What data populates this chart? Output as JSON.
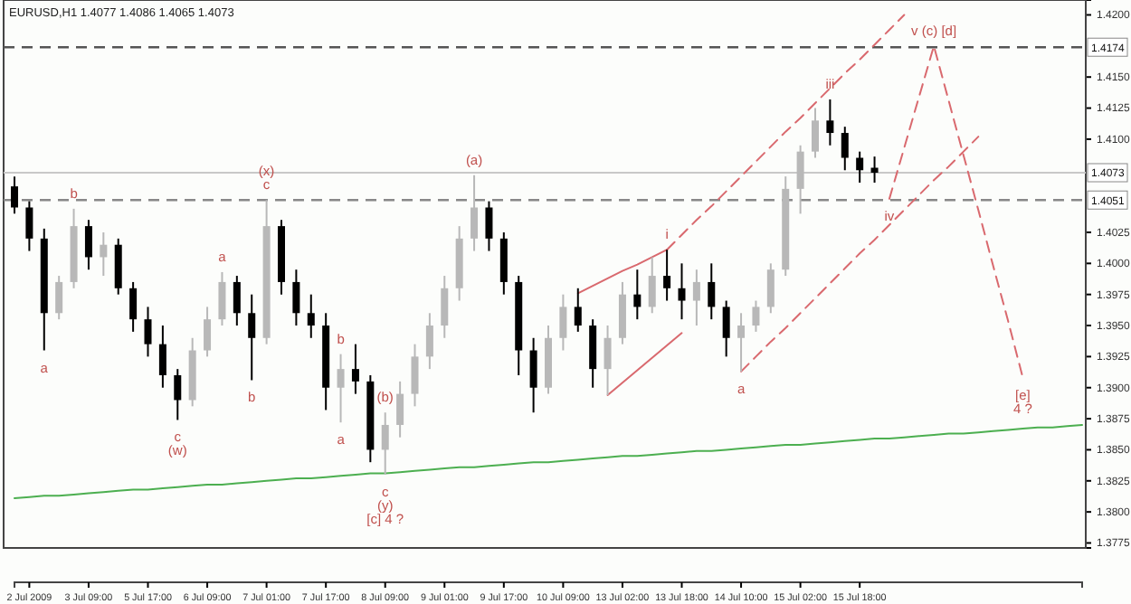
{
  "chart_data": {
    "type": "candlestick",
    "title": "EURUSD,H1  1.4077 1.4086 1.4065 1.4073",
    "categories": [
      null,
      "2 Jul 2009",
      null,
      null,
      null,
      "3 Jul 09:00",
      null,
      null,
      null,
      "5 Jul 17:00",
      null,
      null,
      null,
      "6 Jul 09:00",
      null,
      null,
      null,
      "7 Jul 01:00",
      null,
      null,
      null,
      "7 Jul 17:00",
      null,
      null,
      null,
      "8 Jul 09:00",
      null,
      null,
      null,
      "9 Jul 01:00",
      null,
      null,
      null,
      "9 Jul 17:00",
      null,
      null,
      null,
      "10 Jul 09:00",
      null,
      null,
      null,
      "13 Jul 02:00",
      null,
      null,
      null,
      "13 Jul 18:00",
      null,
      null,
      null,
      "14 Jul 10:00",
      null,
      null,
      null,
      "15 Jul 02:00",
      null,
      null,
      null,
      "15 Jul 18:00",
      null,
      null,
      null,
      null,
      null,
      null,
      null,
      null,
      null,
      null,
      null,
      null,
      null,
      null,
      null
    ],
    "ohlc": [
      [
        1.4062,
        1.407,
        1.404,
        1.4045
      ],
      [
        1.4045,
        1.405,
        1.401,
        1.402
      ],
      [
        1.402,
        1.4028,
        1.393,
        1.396
      ],
      [
        1.396,
        1.399,
        1.3955,
        1.3985
      ],
      [
        1.3985,
        1.4044,
        1.398,
        1.403
      ],
      [
        1.403,
        1.4035,
        1.3995,
        1.4005
      ],
      [
        1.4005,
        1.4025,
        1.399,
        1.4015
      ],
      [
        1.4015,
        1.402,
        1.3975,
        1.398
      ],
      [
        1.398,
        1.3985,
        1.3945,
        1.3955
      ],
      [
        1.3955,
        1.3965,
        1.3925,
        1.3935
      ],
      [
        1.3935,
        1.395,
        1.39,
        1.391
      ],
      [
        1.391,
        1.3915,
        1.3874,
        1.389
      ],
      [
        1.389,
        1.394,
        1.3885,
        1.393
      ],
      [
        1.393,
        1.3965,
        1.3925,
        1.3955
      ],
      [
        1.3955,
        1.3993,
        1.395,
        1.3985
      ],
      [
        1.3985,
        1.399,
        1.395,
        1.396
      ],
      [
        1.396,
        1.3975,
        1.3906,
        1.394
      ],
      [
        1.394,
        1.4051,
        1.3935,
        1.403
      ],
      [
        1.403,
        1.4035,
        1.3975,
        1.3985
      ],
      [
        1.3985,
        1.3995,
        1.395,
        1.396
      ],
      [
        1.396,
        1.3975,
        1.394,
        1.395
      ],
      [
        1.395,
        1.396,
        1.3882,
        1.39
      ],
      [
        1.39,
        1.3927,
        1.3872,
        1.3915
      ],
      [
        1.3915,
        1.3935,
        1.3895,
        1.3905
      ],
      [
        1.3905,
        1.391,
        1.384,
        1.385
      ],
      [
        1.385,
        1.388,
        1.383,
        1.387
      ],
      [
        1.387,
        1.3905,
        1.386,
        1.3895
      ],
      [
        1.3895,
        1.3935,
        1.3885,
        1.3925
      ],
      [
        1.3925,
        1.396,
        1.3915,
        1.395
      ],
      [
        1.395,
        1.399,
        1.394,
        1.398
      ],
      [
        1.398,
        1.403,
        1.397,
        1.402
      ],
      [
        1.402,
        1.4071,
        1.401,
        1.4045
      ],
      [
        1.4045,
        1.405,
        1.401,
        1.402
      ],
      [
        1.402,
        1.4025,
        1.3975,
        1.3985
      ],
      [
        1.3985,
        1.399,
        1.391,
        1.393
      ],
      [
        1.393,
        1.394,
        1.388,
        1.39
      ],
      [
        1.39,
        1.395,
        1.3895,
        1.394
      ],
      [
        1.394,
        1.3975,
        1.393,
        1.3965
      ],
      [
        1.3965,
        1.398,
        1.3945,
        1.395
      ],
      [
        1.395,
        1.3955,
        1.39,
        1.3915
      ],
      [
        1.3915,
        1.395,
        1.3894,
        1.394
      ],
      [
        1.394,
        1.3985,
        1.3935,
        1.3975
      ],
      [
        1.3975,
        1.3995,
        1.3955,
        1.3965
      ],
      [
        1.3965,
        1.4005,
        1.396,
        1.399
      ],
      [
        1.399,
        1.4011,
        1.397,
        1.398
      ],
      [
        1.398,
        1.4,
        1.3955,
        1.397
      ],
      [
        1.397,
        1.3995,
        1.395,
        1.3985
      ],
      [
        1.3985,
        1.4,
        1.3955,
        1.3965
      ],
      [
        1.3965,
        1.397,
        1.3925,
        1.394
      ],
      [
        1.394,
        1.396,
        1.3913,
        1.395
      ],
      [
        1.395,
        1.397,
        1.3945,
        1.3965
      ],
      [
        1.3965,
        1.4,
        1.396,
        1.3995
      ],
      [
        1.3995,
        1.407,
        1.399,
        1.406
      ],
      [
        1.406,
        1.4095,
        1.404,
        1.409
      ],
      [
        1.409,
        1.4125,
        1.4085,
        1.4115
      ],
      [
        1.4115,
        1.4132,
        1.4095,
        1.4105
      ],
      [
        1.4105,
        1.411,
        1.4075,
        1.4085
      ],
      [
        1.4085,
        1.409,
        1.4065,
        1.4075
      ],
      [
        1.4077,
        1.4086,
        1.4065,
        1.4073
      ],
      null,
      null,
      null,
      null,
      null,
      null,
      null,
      null,
      null,
      null,
      null,
      null,
      null,
      null
    ],
    "colors": [
      "#000000",
      "#000000",
      "#000000",
      "#b8b8b8",
      "#b8b8b8",
      "#000000",
      "#b8b8b8",
      "#000000",
      "#000000",
      "#000000",
      "#000000",
      "#000000",
      "#b8b8b8",
      "#b8b8b8",
      "#b8b8b8",
      "#000000",
      "#000000",
      "#b8b8b8",
      "#000000",
      "#000000",
      "#000000",
      "#000000",
      "#b8b8b8",
      "#000000",
      "#000000",
      "#b8b8b8",
      "#b8b8b8",
      "#b8b8b8",
      "#b8b8b8",
      "#b8b8b8",
      "#b8b8b8",
      "#b8b8b8",
      "#000000",
      "#000000",
      "#000000",
      "#000000",
      "#b8b8b8",
      "#b8b8b8",
      "#000000",
      "#000000",
      "#b8b8b8",
      "#b8b8b8",
      "#000000",
      "#b8b8b8",
      "#000000",
      "#000000",
      "#b8b8b8",
      "#000000",
      "#000000",
      "#b8b8b8",
      "#b8b8b8",
      "#b8b8b8",
      "#b8b8b8",
      "#b8b8b8",
      "#b8b8b8",
      "#000000",
      "#000000",
      "#000000",
      "#000000",
      null,
      null,
      null,
      null,
      null,
      null,
      null,
      null,
      null,
      null,
      null,
      null,
      null,
      null
    ],
    "series": [
      {
        "type": "line",
        "color": "#4caf50",
        "line_style": "solid",
        "values": [
          1.3811,
          1.3812,
          1.3813,
          1.3813,
          1.3814,
          1.3815,
          1.3816,
          1.3817,
          1.3818,
          1.3818,
          1.3819,
          1.382,
          1.3821,
          1.3822,
          1.3822,
          1.3823,
          1.3824,
          1.3825,
          1.3826,
          1.3827,
          1.3827,
          1.3828,
          1.3829,
          1.383,
          1.3831,
          1.3831,
          1.3832,
          1.3833,
          1.3834,
          1.3835,
          1.3836,
          1.3836,
          1.3837,
          1.3838,
          1.3839,
          1.384,
          1.384,
          1.3841,
          1.3842,
          1.3843,
          1.3844,
          1.3845,
          1.3845,
          1.3846,
          1.3847,
          1.3848,
          1.3849,
          1.3849,
          1.385,
          1.3851,
          1.3852,
          1.3853,
          1.3854,
          1.3854,
          1.3855,
          1.3856,
          1.3857,
          1.3858,
          1.3859,
          1.3859,
          1.386,
          1.3861,
          1.3862,
          1.3863,
          1.3863,
          1.3864,
          1.3865,
          1.3866,
          1.3867,
          1.3868,
          1.3868,
          1.3869,
          1.387
        ]
      },
      {
        "type": "line",
        "color": "#d9696e",
        "line_style": "dashed",
        "values": [
          null,
          null,
          null,
          null,
          null,
          null,
          null,
          null,
          null,
          null,
          null,
          null,
          null,
          null,
          null,
          null,
          null,
          null,
          null,
          null,
          null,
          null,
          null,
          null,
          null,
          null,
          null,
          null,
          null,
          null,
          null,
          null,
          null,
          null,
          null,
          null,
          null,
          null,
          null,
          null,
          null,
          null,
          null,
          null,
          1.4011,
          1.4023,
          1.4035,
          1.4046,
          1.4058,
          1.407,
          1.4082,
          1.4094,
          1.4106,
          1.4117,
          1.4129,
          1.4141,
          1.4153,
          1.4164,
          1.4176,
          1.4188,
          1.42,
          null,
          null,
          null,
          null,
          null,
          null,
          null,
          null,
          null,
          null,
          null,
          null
        ]
      },
      {
        "type": "line",
        "color": "#d9696e",
        "line_style": "dashed",
        "values": [
          null,
          null,
          null,
          null,
          null,
          null,
          null,
          null,
          null,
          null,
          null,
          null,
          null,
          null,
          null,
          null,
          null,
          null,
          null,
          null,
          null,
          null,
          null,
          null,
          null,
          null,
          null,
          null,
          null,
          null,
          null,
          null,
          null,
          null,
          null,
          null,
          null,
          null,
          null,
          null,
          null,
          null,
          null,
          null,
          null,
          null,
          null,
          null,
          null,
          1.3913,
          1.3925,
          1.3937,
          1.3948,
          1.396,
          1.3972,
          1.3984,
          1.3996,
          1.4008,
          1.4019,
          1.4031,
          1.4043,
          1.4055,
          1.4067,
          1.4078,
          1.409,
          1.4102,
          null,
          null,
          null,
          null,
          null,
          null,
          null
        ]
      },
      {
        "type": "line",
        "color": "#d9696e",
        "line_style": "solid",
        "values": [
          null,
          null,
          null,
          null,
          null,
          null,
          null,
          null,
          null,
          null,
          null,
          null,
          null,
          null,
          null,
          null,
          null,
          null,
          null,
          null,
          null,
          null,
          null,
          null,
          null,
          null,
          null,
          null,
          null,
          null,
          null,
          null,
          null,
          null,
          null,
          null,
          null,
          null,
          1.3976,
          1.3982,
          1.3988,
          1.3994,
          1.3999,
          1.4005,
          1.4011,
          null,
          null,
          null,
          null,
          null,
          null,
          null,
          null,
          null,
          null,
          null,
          null,
          null,
          null,
          null,
          null,
          null,
          null,
          null,
          null,
          null,
          null,
          null,
          null,
          null,
          null,
          null,
          null
        ]
      },
      {
        "type": "line",
        "color": "#d9696e",
        "line_style": "solid",
        "values": [
          null,
          null,
          null,
          null,
          null,
          null,
          null,
          null,
          null,
          null,
          null,
          null,
          null,
          null,
          null,
          null,
          null,
          null,
          null,
          null,
          null,
          null,
          null,
          null,
          null,
          null,
          null,
          null,
          null,
          null,
          null,
          null,
          null,
          null,
          null,
          null,
          null,
          null,
          null,
          null,
          1.3894,
          1.3904,
          1.3914,
          1.3924,
          1.3934,
          1.3944,
          null,
          null,
          null,
          null,
          null,
          null,
          null,
          null,
          null,
          null,
          null,
          null,
          null,
          null,
          null,
          null,
          null,
          null,
          null,
          null,
          null,
          null,
          null,
          null,
          null,
          null,
          null
        ]
      },
      {
        "type": "line",
        "color": "#d9696e",
        "line_style": "dashed",
        "values": [
          null,
          null,
          null,
          null,
          null,
          null,
          null,
          null,
          null,
          null,
          null,
          null,
          null,
          null,
          null,
          null,
          null,
          null,
          null,
          null,
          null,
          null,
          null,
          null,
          null,
          null,
          null,
          null,
          null,
          null,
          null,
          null,
          null,
          null,
          null,
          null,
          null,
          null,
          null,
          null,
          null,
          null,
          null,
          null,
          null,
          null,
          null,
          null,
          null,
          null,
          null,
          null,
          null,
          null,
          null,
          null,
          null,
          null,
          null,
          1.4052,
          1.4093,
          1.4134,
          1.4175,
          1.4131,
          1.4087,
          1.4043,
          1.3998,
          1.3954,
          1.3908,
          null,
          null,
          null,
          null
        ]
      }
    ],
    "ref_lines": [
      {
        "axis": "y",
        "value": 1.4174,
        "label": "1.4174",
        "color": "#555555",
        "line_style": "dashed"
      },
      {
        "axis": "y",
        "value": 1.4073,
        "label": "1.4073",
        "color": "#c8c8c8",
        "line_style": "solid"
      },
      {
        "axis": "y",
        "value": 1.4051,
        "label": "1.4051",
        "color": "#888888",
        "line_style": "dashed"
      }
    ],
    "annotations": [
      {
        "text": "a",
        "y": 1.393
      },
      {
        "text": "b",
        "y": 1.4044
      },
      {
        "text": "c",
        "y": 1.3874
      },
      {
        "text": "(w)",
        "y": 1.3874
      },
      {
        "text": "a",
        "y": 1.3993
      },
      {
        "text": "b",
        "y": 1.3906
      },
      {
        "text": "c",
        "y": 1.4051
      },
      {
        "text": "(x)",
        "y": 1.4051
      },
      {
        "text": "b",
        "y": 1.3927
      },
      {
        "text": "a",
        "y": 1.3872
      },
      {
        "text": "c",
        "y": 1.383
      },
      {
        "text": "(y)",
        "y": 1.383
      },
      {
        "text": "[c] 4 ?",
        "y": 1.383
      },
      {
        "text": "(a)",
        "y": 1.4071
      },
      {
        "text": "(b)",
        "y": 1.388
      },
      {
        "text": "i",
        "y": 1.4011
      },
      {
        "text": "a",
        "y": 1.3913
      },
      {
        "text": "iii",
        "y": 1.4132
      },
      {
        "text": "iv",
        "y": 1.4052
      },
      {
        "text": "v (c) [d]",
        "y": 1.4175
      },
      {
        "text": "[e]",
        "y": 1.3908
      },
      {
        "text": "4 ?",
        "y": 1.3908
      }
    ],
    "ylim": [
      1.3771,
      1.4212
    ],
    "yticks": [
      {
        "value": 1.42,
        "label": "1.4200"
      },
      {
        "value": 1.415,
        "label": "1.4150"
      },
      {
        "value": 1.4125,
        "label": "1.4125"
      },
      {
        "value": 1.41,
        "label": "1.4100"
      },
      {
        "value": 1.4025,
        "label": "1.4025"
      },
      {
        "value": 1.4,
        "label": "1.4000"
      },
      {
        "value": 1.3975,
        "label": "1.3975"
      },
      {
        "value": 1.395,
        "label": "1.3950"
      },
      {
        "value": 1.3925,
        "label": "1.3925"
      },
      {
        "value": 1.39,
        "label": "1.3900"
      },
      {
        "value": 1.3875,
        "label": "1.3875"
      },
      {
        "value": 1.385,
        "label": "1.3850"
      },
      {
        "value": 1.3825,
        "label": "1.3825"
      },
      {
        "value": 1.38,
        "label": "1.3800"
      },
      {
        "value": 1.3775,
        "label": "1.3775"
      }
    ],
    "grid": false
  }
}
